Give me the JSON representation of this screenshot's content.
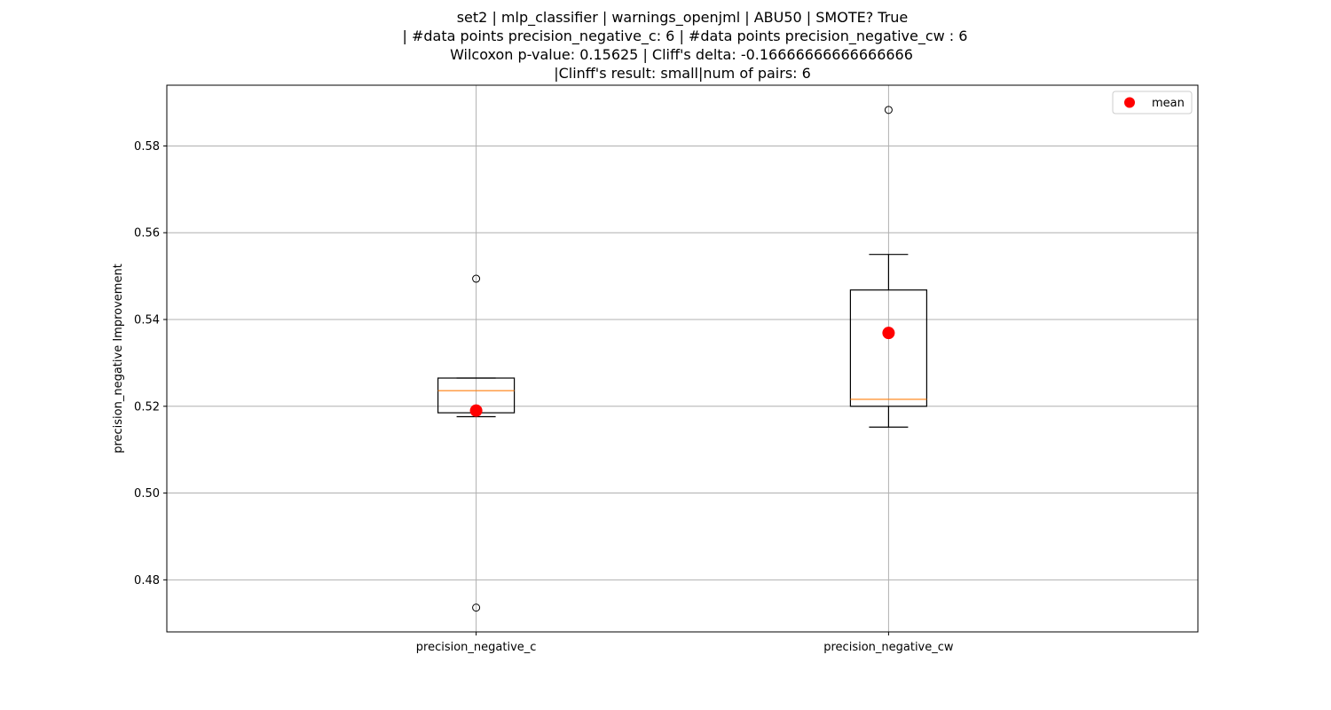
{
  "chart_data": {
    "type": "boxplot",
    "title_lines": [
      "set2 | mlp_classifier | warnings_openjml | ABU50 | SMOTE? True",
      "| #data points precision_negative_c: 6 | #data points precision_negative_cw : 6",
      "Wilcoxon p-value: 0.15625 | Cliff's delta: -0.16666666666666666",
      "|Clinff's result: small|num of pairs: 6"
    ],
    "xlabel": "",
    "ylabel": "precision_negative Improvement",
    "ylim": [
      0.468,
      0.594
    ],
    "yticks": [
      0.48,
      0.5,
      0.52,
      0.54,
      0.56,
      0.58
    ],
    "ytick_labels": [
      "0.48",
      "0.50",
      "0.52",
      "0.54",
      "0.56",
      "0.58"
    ],
    "grid": true,
    "legend": {
      "location": "top-right",
      "entries": [
        {
          "label": "mean",
          "color": "#ff0000",
          "marker": "circle"
        }
      ]
    },
    "colors": {
      "box": "#000000",
      "median": "#ff7f0e",
      "mean": "#ff0000",
      "grid": "#b0b0b0"
    },
    "categories": [
      "precision_negative_c",
      "precision_negative_cw"
    ],
    "boxes": [
      {
        "name": "precision_negative_c",
        "whisker_low": 0.5176,
        "q1": 0.5185,
        "median": 0.5236,
        "q3": 0.5265,
        "whisker_high": 0.5265,
        "mean": 0.519,
        "outliers": [
          0.5494,
          0.4736
        ]
      },
      {
        "name": "precision_negative_cw",
        "whisker_low": 0.5152,
        "q1": 0.52,
        "median": 0.5216,
        "q3": 0.5468,
        "whisker_high": 0.555,
        "mean": 0.5369,
        "outliers": [
          0.5883
        ]
      }
    ]
  }
}
